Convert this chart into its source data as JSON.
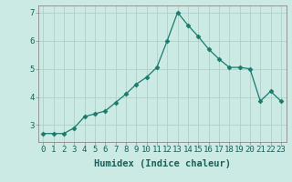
{
  "x": [
    0,
    1,
    2,
    3,
    4,
    5,
    6,
    7,
    8,
    9,
    10,
    11,
    12,
    13,
    14,
    15,
    16,
    17,
    18,
    19,
    20,
    21,
    22,
    23
  ],
  "y": [
    2.7,
    2.7,
    2.7,
    2.9,
    3.3,
    3.4,
    3.5,
    3.8,
    4.1,
    4.45,
    4.7,
    5.05,
    6.0,
    7.0,
    6.55,
    6.15,
    5.7,
    5.35,
    5.05,
    5.05,
    5.0,
    3.85,
    4.2,
    3.85
  ],
  "line_color": "#1a7a6e",
  "marker": "D",
  "marker_size": 2.5,
  "bg_color": "#cceae4",
  "grid_color": "#b0cfc8",
  "axis_color": "#555555",
  "xlabel": "Humidex (Indice chaleur)",
  "xlabel_fontsize": 7.5,
  "xlabel_fontweight": "bold",
  "xlim": [
    -0.5,
    23.5
  ],
  "ylim": [
    2.4,
    7.25
  ],
  "yticks": [
    3,
    4,
    5,
    6,
    7
  ],
  "xticks": [
    0,
    1,
    2,
    3,
    4,
    5,
    6,
    7,
    8,
    9,
    10,
    11,
    12,
    13,
    14,
    15,
    16,
    17,
    18,
    19,
    20,
    21,
    22,
    23
  ],
  "tick_fontsize": 6.5
}
